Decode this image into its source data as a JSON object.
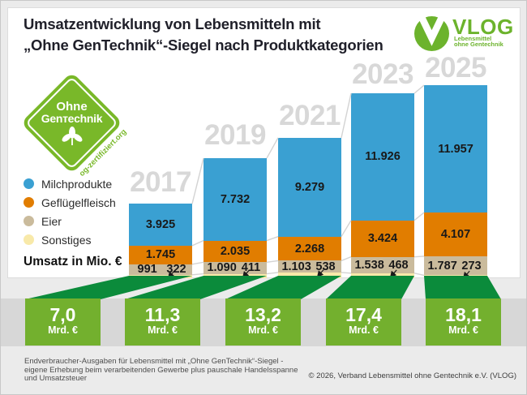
{
  "header": {
    "title_line1": "Umsatzentwicklung von Lebensmitteln mit",
    "title_line2": "„Ohne GenTechnik“-Siegel nach Produktkategorien"
  },
  "logo": {
    "name": "VLOG",
    "tagline_line1": "Lebensmittel",
    "tagline_line2": "ohne Gentechnik",
    "green": "#6cb32c"
  },
  "badge": {
    "line1": "Ohne",
    "line2": "Genтechnik",
    "url": "og-zertifiziert.org",
    "green": "#79b829"
  },
  "legend": {
    "items": [
      {
        "label": "Milchprodukte",
        "color": "#3aa0d2"
      },
      {
        "label": "Geflügelfleisch",
        "color": "#e17d00"
      },
      {
        "label": "Eier",
        "color": "#cabb9c"
      },
      {
        "label": "Sonstiges",
        "color": "#f8e9a9"
      }
    ],
    "unit_label": "Umsatz in Mio. €"
  },
  "chart_data": {
    "type": "stacked_bar",
    "title": "Umsatzentwicklung von Lebensmitteln mit „Ohne GenTechnik“-Siegel nach Produktkategorien",
    "value_unit": "Mio. €",
    "categories": [
      "2017",
      "2019",
      "2021",
      "2023",
      "2025"
    ],
    "series": [
      {
        "name": "Milchprodukte",
        "color": "#3aa0d2",
        "values": [
          3925,
          7732,
          9279,
          11926,
          11957
        ],
        "labels": [
          "3.925",
          "7.732",
          "9.279",
          "11.926",
          "11.957"
        ]
      },
      {
        "name": "Geflügelfleisch",
        "color": "#e17d00",
        "values": [
          1745,
          2035,
          2268,
          3424,
          4107
        ],
        "labels": [
          "1.745",
          "2.035",
          "2.268",
          "3.424",
          "4.107"
        ]
      },
      {
        "name": "Eier",
        "color": "#cabb9c",
        "values": [
          991,
          1090,
          1103,
          1538,
          1787
        ],
        "labels": [
          "991",
          "1.090",
          "1.103",
          "1.538",
          "1.787"
        ]
      },
      {
        "name": "Sonstiges",
        "color": "#f8e9a9",
        "values": [
          322,
          411,
          538,
          468,
          273
        ],
        "labels": [
          "322",
          "411",
          "538",
          "468",
          "273"
        ]
      }
    ],
    "stack_order_bottom_to_top": [
      "Sonstiges",
      "Eier",
      "Geflügelfleisch",
      "Milchprodukte"
    ],
    "totals": {
      "values": [
        "7,0",
        "11,3",
        "13,2",
        "17,4",
        "18,1"
      ],
      "unit": "Mrd. €"
    },
    "legend_position": "left",
    "grid": false,
    "colors": {
      "funnel_green": "#0b8b3b",
      "box_green": "#73b02e",
      "year_gray": "#d8d8d8",
      "connector_gray": "#d3d3d3"
    }
  },
  "footer": {
    "note_line1": "Endverbraucher-Ausgaben für Lebensmittel mit „Ohne GenTechnik“-Siegel -",
    "note_line2": "eigene Erhebung beim verarbeitenden Gewerbe plus pauschale Handelsspanne",
    "note_line3": "und Umsatzsteuer",
    "copyright": "© 2026, Verband Lebensmittel ohne Gentechnik e.V. (VLOG)"
  }
}
